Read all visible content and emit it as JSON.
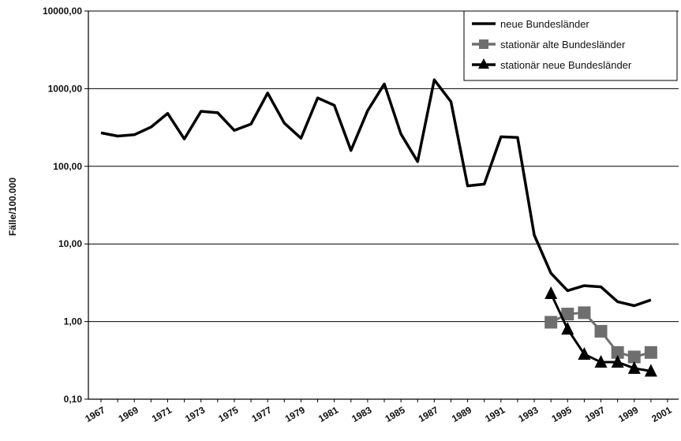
{
  "chart_data": {
    "type": "line",
    "title": "",
    "ylabel": "Fälle/100.000",
    "xlabel": "",
    "y_scale": "log",
    "ylim": [
      0.1,
      10000
    ],
    "xlim": [
      1967,
      2001
    ],
    "grid": "horizontal",
    "legend_position": "top-right",
    "y_ticks": [
      {
        "value": 0.1,
        "label": "0,10"
      },
      {
        "value": 1,
        "label": "1,00"
      },
      {
        "value": 10,
        "label": "10,00"
      },
      {
        "value": 100,
        "label": "100,00"
      },
      {
        "value": 1000,
        "label": "1000,00"
      },
      {
        "value": 10000,
        "label": "10000,00"
      }
    ],
    "x_ticks": [
      1967,
      1969,
      1971,
      1973,
      1975,
      1977,
      1979,
      1981,
      1983,
      1985,
      1987,
      1989,
      1991,
      1993,
      1995,
      1997,
      1999,
      2001
    ],
    "series": [
      {
        "name": "neue Bundesländer",
        "color": "#000000",
        "marker": "none",
        "x": [
          1967,
          1968,
          1969,
          1970,
          1971,
          1972,
          1973,
          1974,
          1975,
          1976,
          1977,
          1978,
          1979,
          1980,
          1981,
          1982,
          1983,
          1984,
          1985,
          1986,
          1987,
          1988,
          1989,
          1990,
          1991,
          1992,
          1993,
          1994,
          1995,
          1996,
          1997,
          1998,
          1999,
          2000,
          2001
        ],
        "y": [
          270,
          245,
          255,
          320,
          480,
          225,
          510,
          490,
          290,
          350,
          880,
          360,
          230,
          760,
          610,
          160,
          520,
          1150,
          260,
          115,
          1300,
          680,
          56,
          59,
          240,
          235,
          13,
          4.2,
          2.5,
          2.9,
          2.8,
          1.8,
          1.6,
          1.9,
          null
        ]
      },
      {
        "name": "stationär alte Bundesländer",
        "color": "#6e6e6e",
        "marker": "square",
        "x": [
          1994,
          1995,
          1996,
          1997,
          1998,
          1999,
          2000
        ],
        "y": [
          0.98,
          1.25,
          1.3,
          0.75,
          0.4,
          0.35,
          0.4
        ]
      },
      {
        "name": "stationär neue Bundesländer",
        "color": "#000000",
        "marker": "triangle",
        "x": [
          1994,
          1995,
          1996,
          1997,
          1998,
          1999,
          2000
        ],
        "y": [
          2.3,
          0.8,
          0.38,
          0.3,
          0.3,
          0.25,
          0.23
        ]
      }
    ]
  }
}
